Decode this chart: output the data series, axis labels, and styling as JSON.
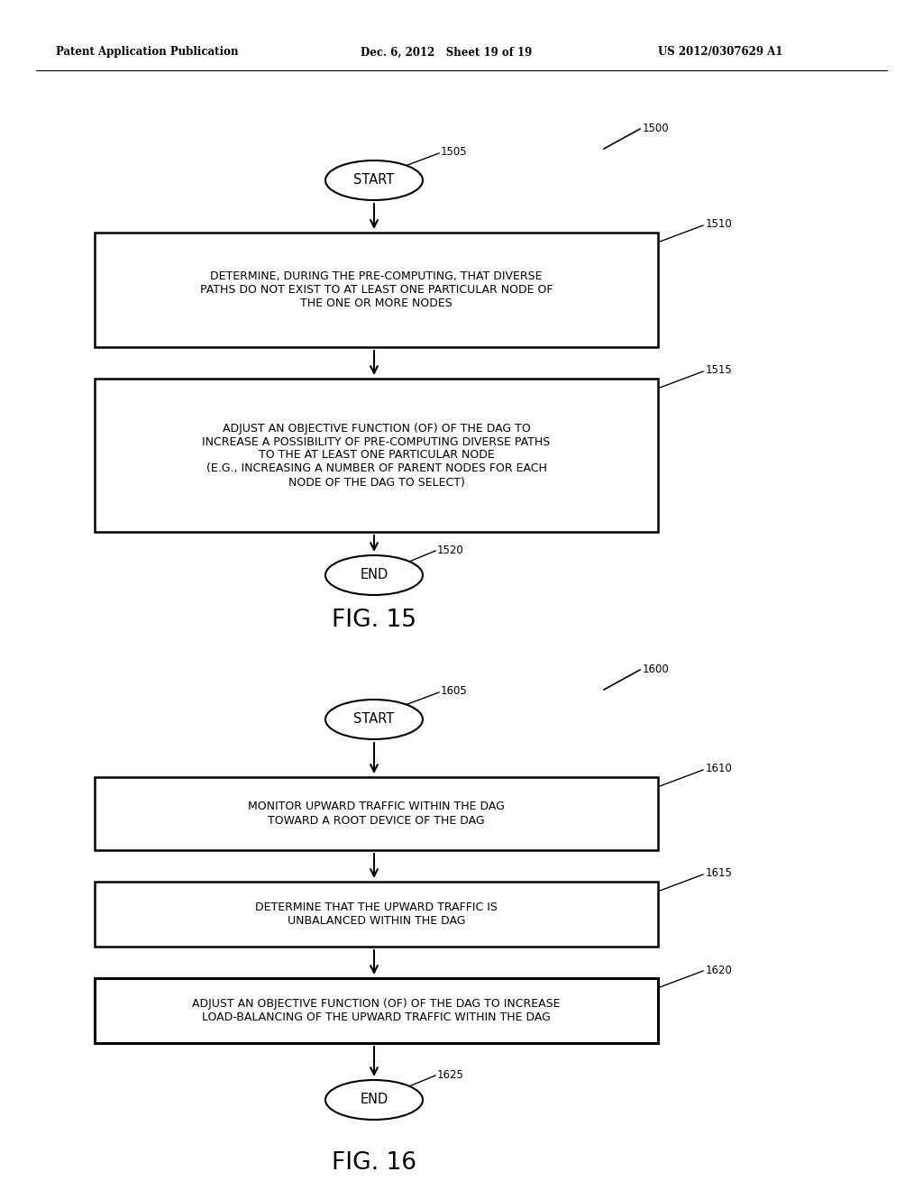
{
  "bg_color": "#ffffff",
  "header_left": "Patent Application Publication",
  "header_center": "Dec. 6, 2012   Sheet 19 of 19",
  "header_right": "US 2012/0307629 A1",
  "fig15": {
    "title": "FIG. 15",
    "label_1500": "1500",
    "label_1505": "1505",
    "label_1510": "1510",
    "label_1515": "1515",
    "label_1520": "1520",
    "start_text": "START",
    "end_text": "END",
    "box1_text": "DETERMINE, DURING THE PRE-COMPUTING, THAT DIVERSE\nPATHS DO NOT EXIST TO AT LEAST ONE PARTICULAR NODE OF\nTHE ONE OR MORE NODES",
    "box2_text": "ADJUST AN OBJECTIVE FUNCTION (OF) OF THE DAG TO\nINCREASE A POSSIBILITY OF PRE-COMPUTING DIVERSE PATHS\nTO THE AT LEAST ONE PARTICULAR NODE\n(E.G., INCREASING A NUMBER OF PARENT NODES FOR EACH\nNODE OF THE DAG TO SELECT)"
  },
  "fig16": {
    "title": "FIG. 16",
    "label_1600": "1600",
    "label_1605": "1605",
    "label_1610": "1610",
    "label_1615": "1615",
    "label_1620": "1620",
    "label_1625": "1625",
    "start_text": "START",
    "end_text": "END",
    "box1_text": "MONITOR UPWARD TRAFFIC WITHIN THE DAG\nTOWARD A ROOT DEVICE OF THE DAG",
    "box2_text": "DETERMINE THAT THE UPWARD TRAFFIC IS\nUNBALANCED WITHIN THE DAG",
    "box3_text": "ADJUST AN OBJECTIVE FUNCTION (OF) OF THE DAG TO INCREASE\nLOAD-BALANCING OF THE UPWARD TRAFFIC WITHIN THE DAG"
  }
}
